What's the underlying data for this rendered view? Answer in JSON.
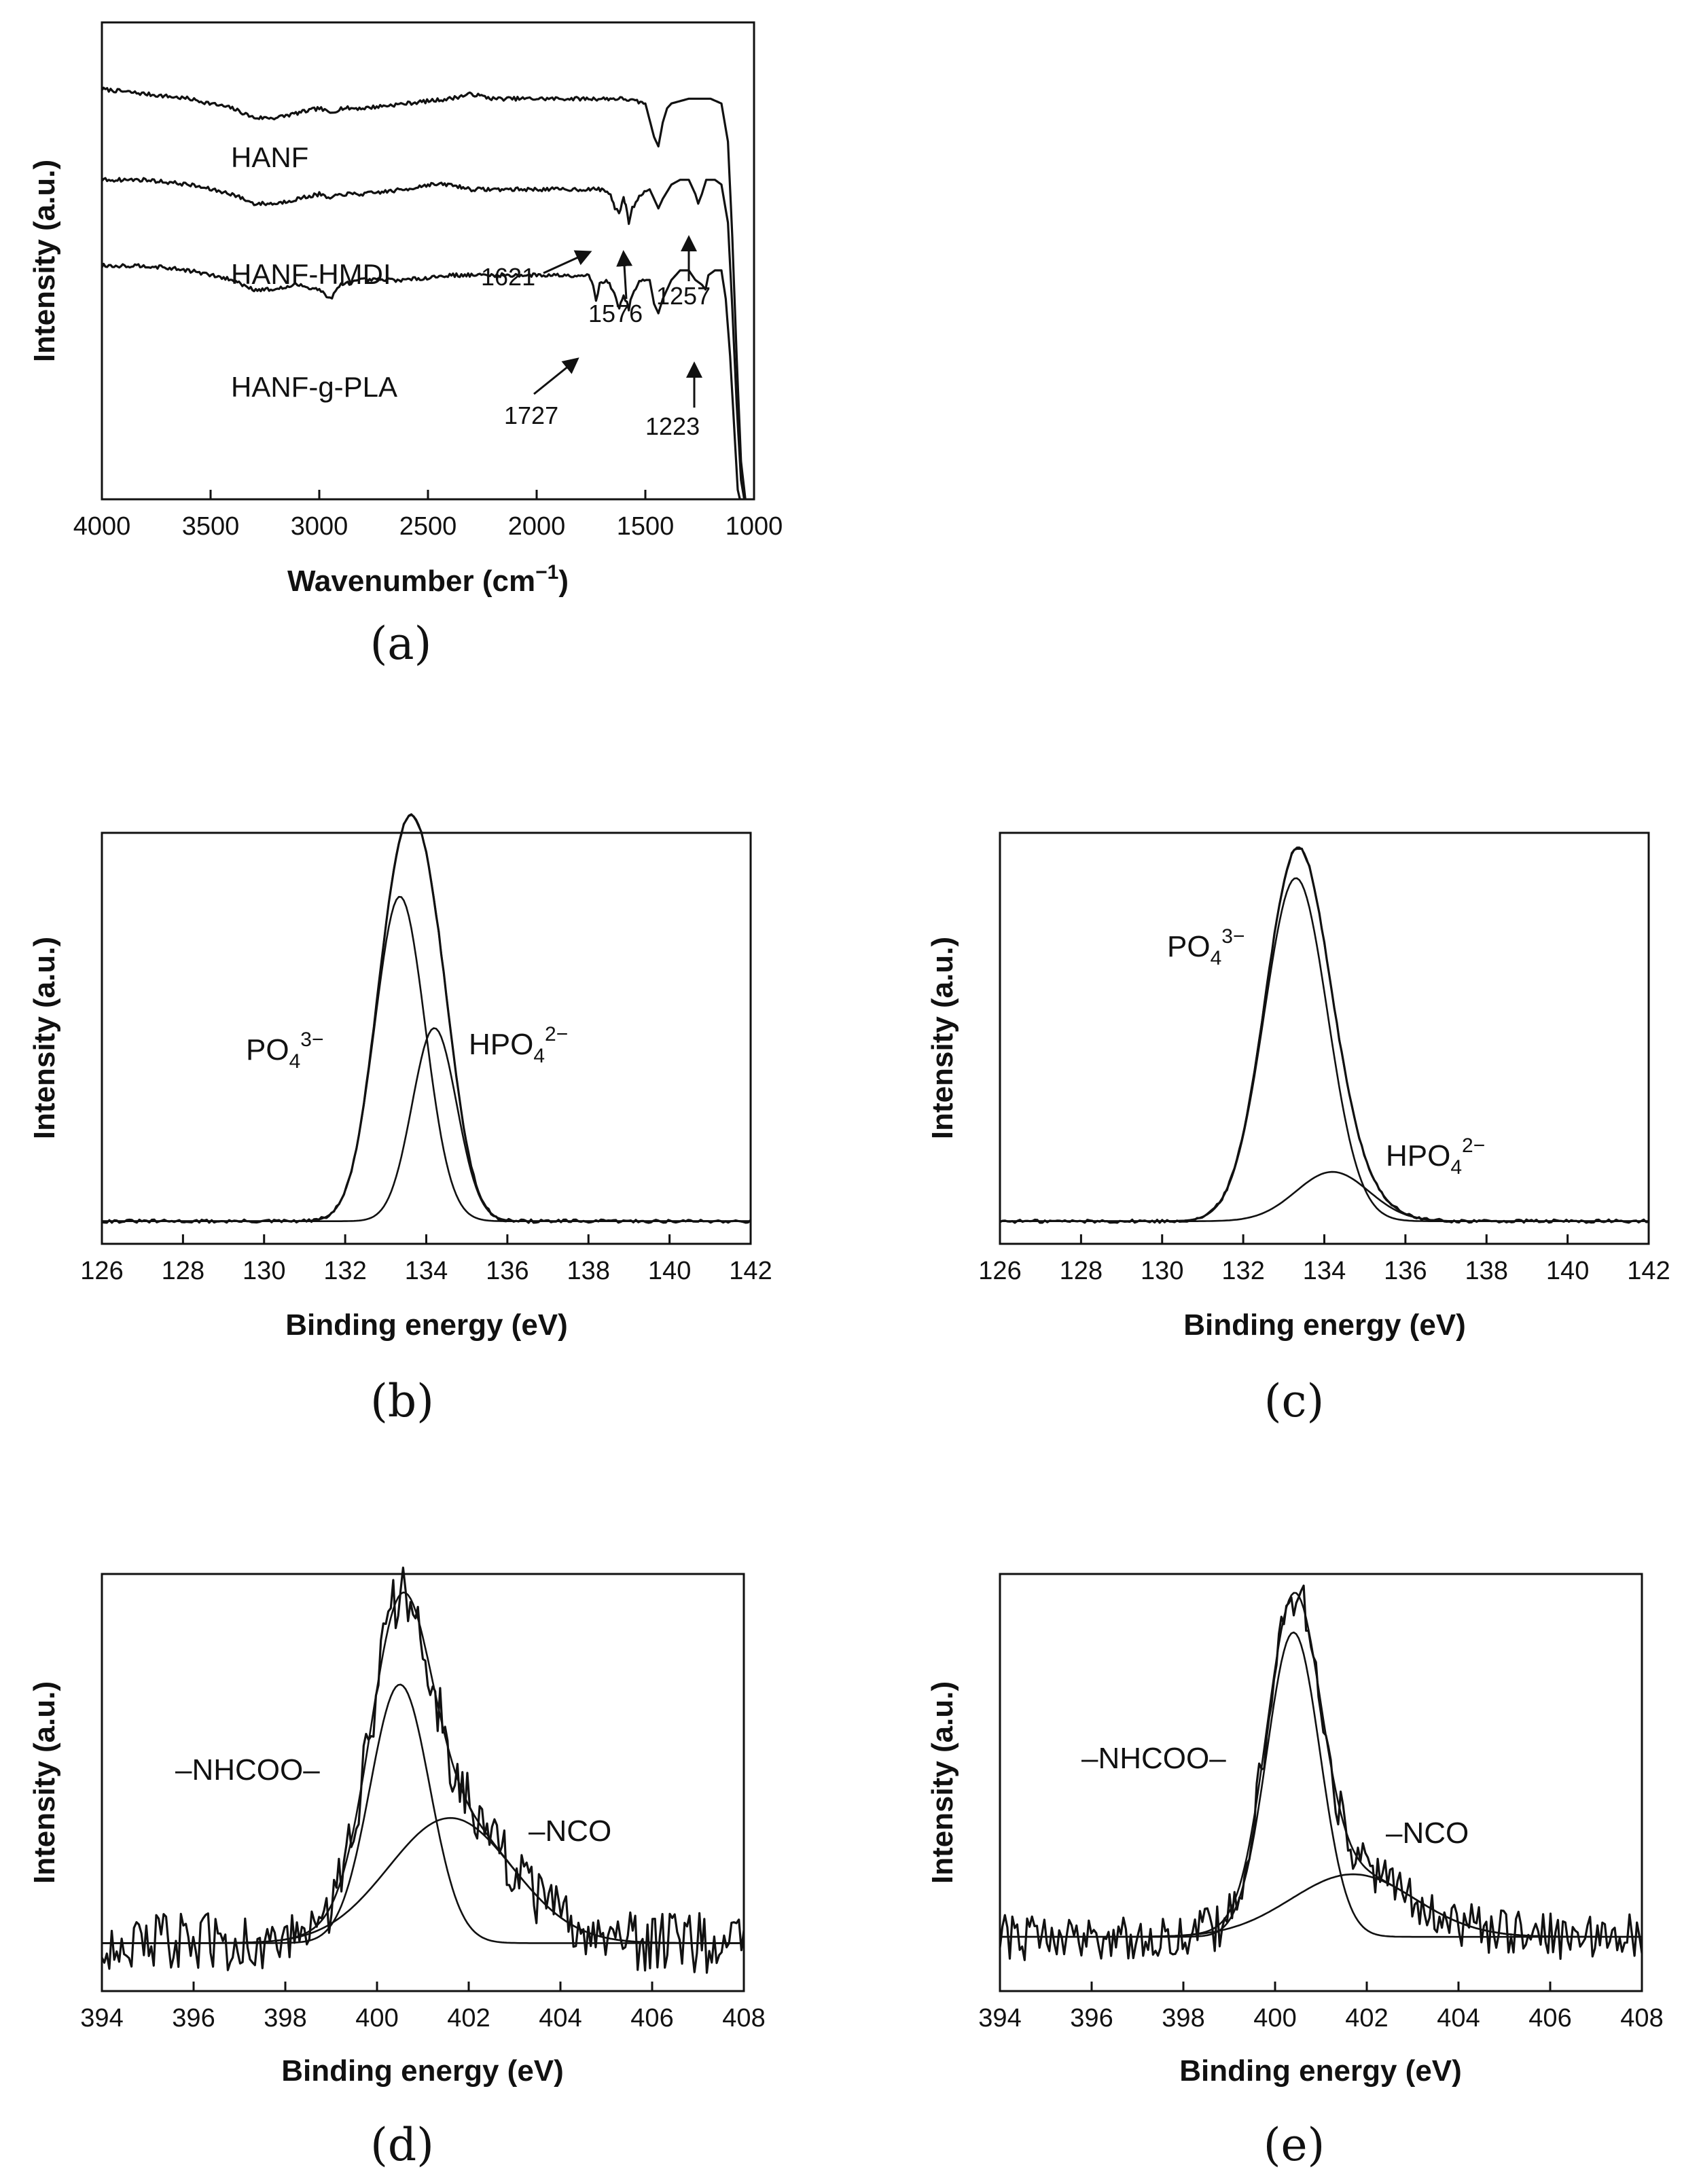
{
  "chart_data": [
    {
      "id": "a",
      "type": "line",
      "panel_label": "(a)",
      "title": "",
      "xlabel": "Wavenumber (cm⁻¹)",
      "xlabel_main": "Wavenumber (cm",
      "xlabel_sup": "−1",
      "xlabel_end": ")",
      "ylabel": "Intensity (a.u.)",
      "xlim": [
        4000,
        1000
      ],
      "xticks": [
        4000,
        3500,
        3000,
        2500,
        2000,
        1500,
        1000
      ],
      "ylim": [
        0,
        1
      ],
      "series": [
        {
          "name": "HANF",
          "points": [
            [
              4000,
              0.86
            ],
            [
              3800,
              0.85
            ],
            [
              3600,
              0.84
            ],
            [
              3400,
              0.82
            ],
            [
              3300,
              0.8
            ],
            [
              3200,
              0.8
            ],
            [
              3100,
              0.81
            ],
            [
              3000,
              0.82
            ],
            [
              2950,
              0.81
            ],
            [
              2900,
              0.82
            ],
            [
              2800,
              0.82
            ],
            [
              2600,
              0.83
            ],
            [
              2400,
              0.84
            ],
            [
              2300,
              0.85
            ],
            [
              2200,
              0.84
            ],
            [
              2000,
              0.84
            ],
            [
              1800,
              0.84
            ],
            [
              1700,
              0.84
            ],
            [
              1600,
              0.84
            ],
            [
              1500,
              0.83
            ],
            [
              1460,
              0.76
            ],
            [
              1440,
              0.74
            ],
            [
              1420,
              0.79
            ],
            [
              1400,
              0.82
            ],
            [
              1380,
              0.83
            ],
            [
              1300,
              0.84
            ],
            [
              1200,
              0.84
            ],
            [
              1150,
              0.83
            ],
            [
              1120,
              0.75
            ],
            [
              1100,
              0.55
            ],
            [
              1080,
              0.3
            ],
            [
              1060,
              0.08
            ],
            [
              1040,
              0.0
            ]
          ]
        },
        {
          "name": "HANF-HMDI",
          "points": [
            [
              4000,
              0.67
            ],
            [
              3800,
              0.67
            ],
            [
              3600,
              0.66
            ],
            [
              3400,
              0.64
            ],
            [
              3300,
              0.62
            ],
            [
              3200,
              0.62
            ],
            [
              3100,
              0.63
            ],
            [
              3000,
              0.64
            ],
            [
              2950,
              0.63
            ],
            [
              2900,
              0.64
            ],
            [
              2800,
              0.64
            ],
            [
              2600,
              0.65
            ],
            [
              2500,
              0.66
            ],
            [
              2400,
              0.66
            ],
            [
              2300,
              0.65
            ],
            [
              2200,
              0.65
            ],
            [
              2000,
              0.65
            ],
            [
              1800,
              0.65
            ],
            [
              1700,
              0.65
            ],
            [
              1660,
              0.64
            ],
            [
              1640,
              0.61
            ],
            [
              1621,
              0.6
            ],
            [
              1600,
              0.63
            ],
            [
              1590,
              0.62
            ],
            [
              1576,
              0.58
            ],
            [
              1560,
              0.61
            ],
            [
              1520,
              0.64
            ],
            [
              1480,
              0.65
            ],
            [
              1460,
              0.63
            ],
            [
              1440,
              0.61
            ],
            [
              1420,
              0.63
            ],
            [
              1380,
              0.66
            ],
            [
              1340,
              0.67
            ],
            [
              1300,
              0.67
            ],
            [
              1270,
              0.64
            ],
            [
              1257,
              0.62
            ],
            [
              1240,
              0.64
            ],
            [
              1220,
              0.67
            ],
            [
              1180,
              0.67
            ],
            [
              1150,
              0.66
            ],
            [
              1120,
              0.58
            ],
            [
              1100,
              0.4
            ],
            [
              1080,
              0.2
            ],
            [
              1060,
              0.04
            ],
            [
              1045,
              0.0
            ]
          ]
        },
        {
          "name": "HANF-g-PLA",
          "points": [
            [
              4000,
              0.49
            ],
            [
              3800,
              0.49
            ],
            [
              3600,
              0.48
            ],
            [
              3400,
              0.46
            ],
            [
              3300,
              0.44
            ],
            [
              3200,
              0.44
            ],
            [
              3100,
              0.45
            ],
            [
              3000,
              0.44
            ],
            [
              2950,
              0.42
            ],
            [
              2900,
              0.45
            ],
            [
              2800,
              0.46
            ],
            [
              2600,
              0.46
            ],
            [
              2400,
              0.47
            ],
            [
              2300,
              0.47
            ],
            [
              2200,
              0.47
            ],
            [
              2000,
              0.47
            ],
            [
              1800,
              0.47
            ],
            [
              1760,
              0.47
            ],
            [
              1740,
              0.45
            ],
            [
              1727,
              0.42
            ],
            [
              1710,
              0.45
            ],
            [
              1680,
              0.46
            ],
            [
              1650,
              0.44
            ],
            [
              1620,
              0.4
            ],
            [
              1600,
              0.43
            ],
            [
              1576,
              0.4
            ],
            [
              1560,
              0.43
            ],
            [
              1520,
              0.46
            ],
            [
              1480,
              0.46
            ],
            [
              1460,
              0.41
            ],
            [
              1440,
              0.39
            ],
            [
              1420,
              0.42
            ],
            [
              1380,
              0.46
            ],
            [
              1340,
              0.48
            ],
            [
              1300,
              0.48
            ],
            [
              1270,
              0.46
            ],
            [
              1240,
              0.45
            ],
            [
              1223,
              0.44
            ],
            [
              1210,
              0.47
            ],
            [
              1180,
              0.48
            ],
            [
              1150,
              0.48
            ],
            [
              1130,
              0.42
            ],
            [
              1110,
              0.3
            ],
            [
              1090,
              0.14
            ],
            [
              1075,
              0.02
            ],
            [
              1065,
              0.0
            ]
          ]
        }
      ],
      "annotations": [
        {
          "text": "1621",
          "x": 1621
        },
        {
          "text": "1576",
          "x": 1576
        },
        {
          "text": "1257",
          "x": 1257
        },
        {
          "text": "1727",
          "x": 1727
        },
        {
          "text": "1223",
          "x": 1223
        }
      ]
    },
    {
      "id": "b",
      "type": "line",
      "panel_label": "(b)",
      "xlabel": "Binding energy (eV)",
      "ylabel": "Intensity (a.u.)",
      "xlim": [
        126,
        142
      ],
      "xticks": [
        126,
        128,
        130,
        132,
        134,
        136,
        138,
        140,
        142
      ],
      "ylim": [
        0,
        1
      ],
      "baseline": 0.055,
      "noise": 0.004,
      "peaks": [
        {
          "name": "PO₄³⁻",
          "center": 133.35,
          "height": 0.79,
          "sigma": 0.62
        },
        {
          "name": "HPO₄²⁻",
          "center": 134.2,
          "height": 0.47,
          "sigma": 0.55
        }
      ],
      "peak_labels": [
        {
          "base": "PO",
          "sub": "4",
          "sup": "3−"
        },
        {
          "base": "HPO",
          "sub": "4",
          "sup": "2−"
        }
      ]
    },
    {
      "id": "c",
      "type": "line",
      "panel_label": "(c)",
      "xlabel": "Binding energy (eV)",
      "ylabel": "Intensity (a.u.)",
      "xlim": [
        126,
        142
      ],
      "xticks": [
        126,
        128,
        130,
        132,
        134,
        136,
        138,
        140,
        142
      ],
      "ylim": [
        0,
        1
      ],
      "baseline": 0.055,
      "noise": 0.004,
      "peaks": [
        {
          "name": "PO₄³⁻",
          "center": 133.3,
          "height": 0.835,
          "sigma": 0.78
        },
        {
          "name": "HPO₄²⁻",
          "center": 134.2,
          "height": 0.12,
          "sigma": 0.9
        }
      ],
      "peak_labels": [
        {
          "base": "PO",
          "sub": "4",
          "sup": "3−"
        },
        {
          "base": "HPO",
          "sub": "4",
          "sup": "2−"
        }
      ]
    },
    {
      "id": "d",
      "type": "line",
      "panel_label": "(d)",
      "xlabel": "Binding energy (eV)",
      "ylabel": "Intensity (a.u.)",
      "xlim": [
        394,
        408
      ],
      "xticks": [
        394,
        396,
        398,
        400,
        402,
        404,
        406,
        408
      ],
      "ylim": [
        0,
        1
      ],
      "baseline": 0.115,
      "noise": 0.045,
      "peaks": [
        {
          "name": "–NHCOO–",
          "center": 400.5,
          "height": 0.62,
          "sigma": 0.65
        },
        {
          "name": "–NCO",
          "center": 401.6,
          "height": 0.3,
          "sigma": 1.35
        }
      ],
      "peak_label_text": [
        "–NHCOO–",
        "–NCO"
      ]
    },
    {
      "id": "e",
      "type": "line",
      "panel_label": "(e)",
      "xlabel": "Binding energy (eV)",
      "ylabel": "Intensity (a.u.)",
      "xlim": [
        394,
        408
      ],
      "xticks": [
        394,
        396,
        398,
        400,
        402,
        404,
        406,
        408
      ],
      "ylim": [
        0,
        1
      ],
      "baseline": 0.13,
      "noise": 0.035,
      "peaks": [
        {
          "name": "–NHCOO–",
          "center": 400.4,
          "height": 0.73,
          "sigma": 0.58
        },
        {
          "name": "–NCO",
          "center": 401.7,
          "height": 0.15,
          "sigma": 1.35
        }
      ],
      "peak_label_text": [
        "–NHCOO–",
        "–NCO"
      ]
    }
  ]
}
